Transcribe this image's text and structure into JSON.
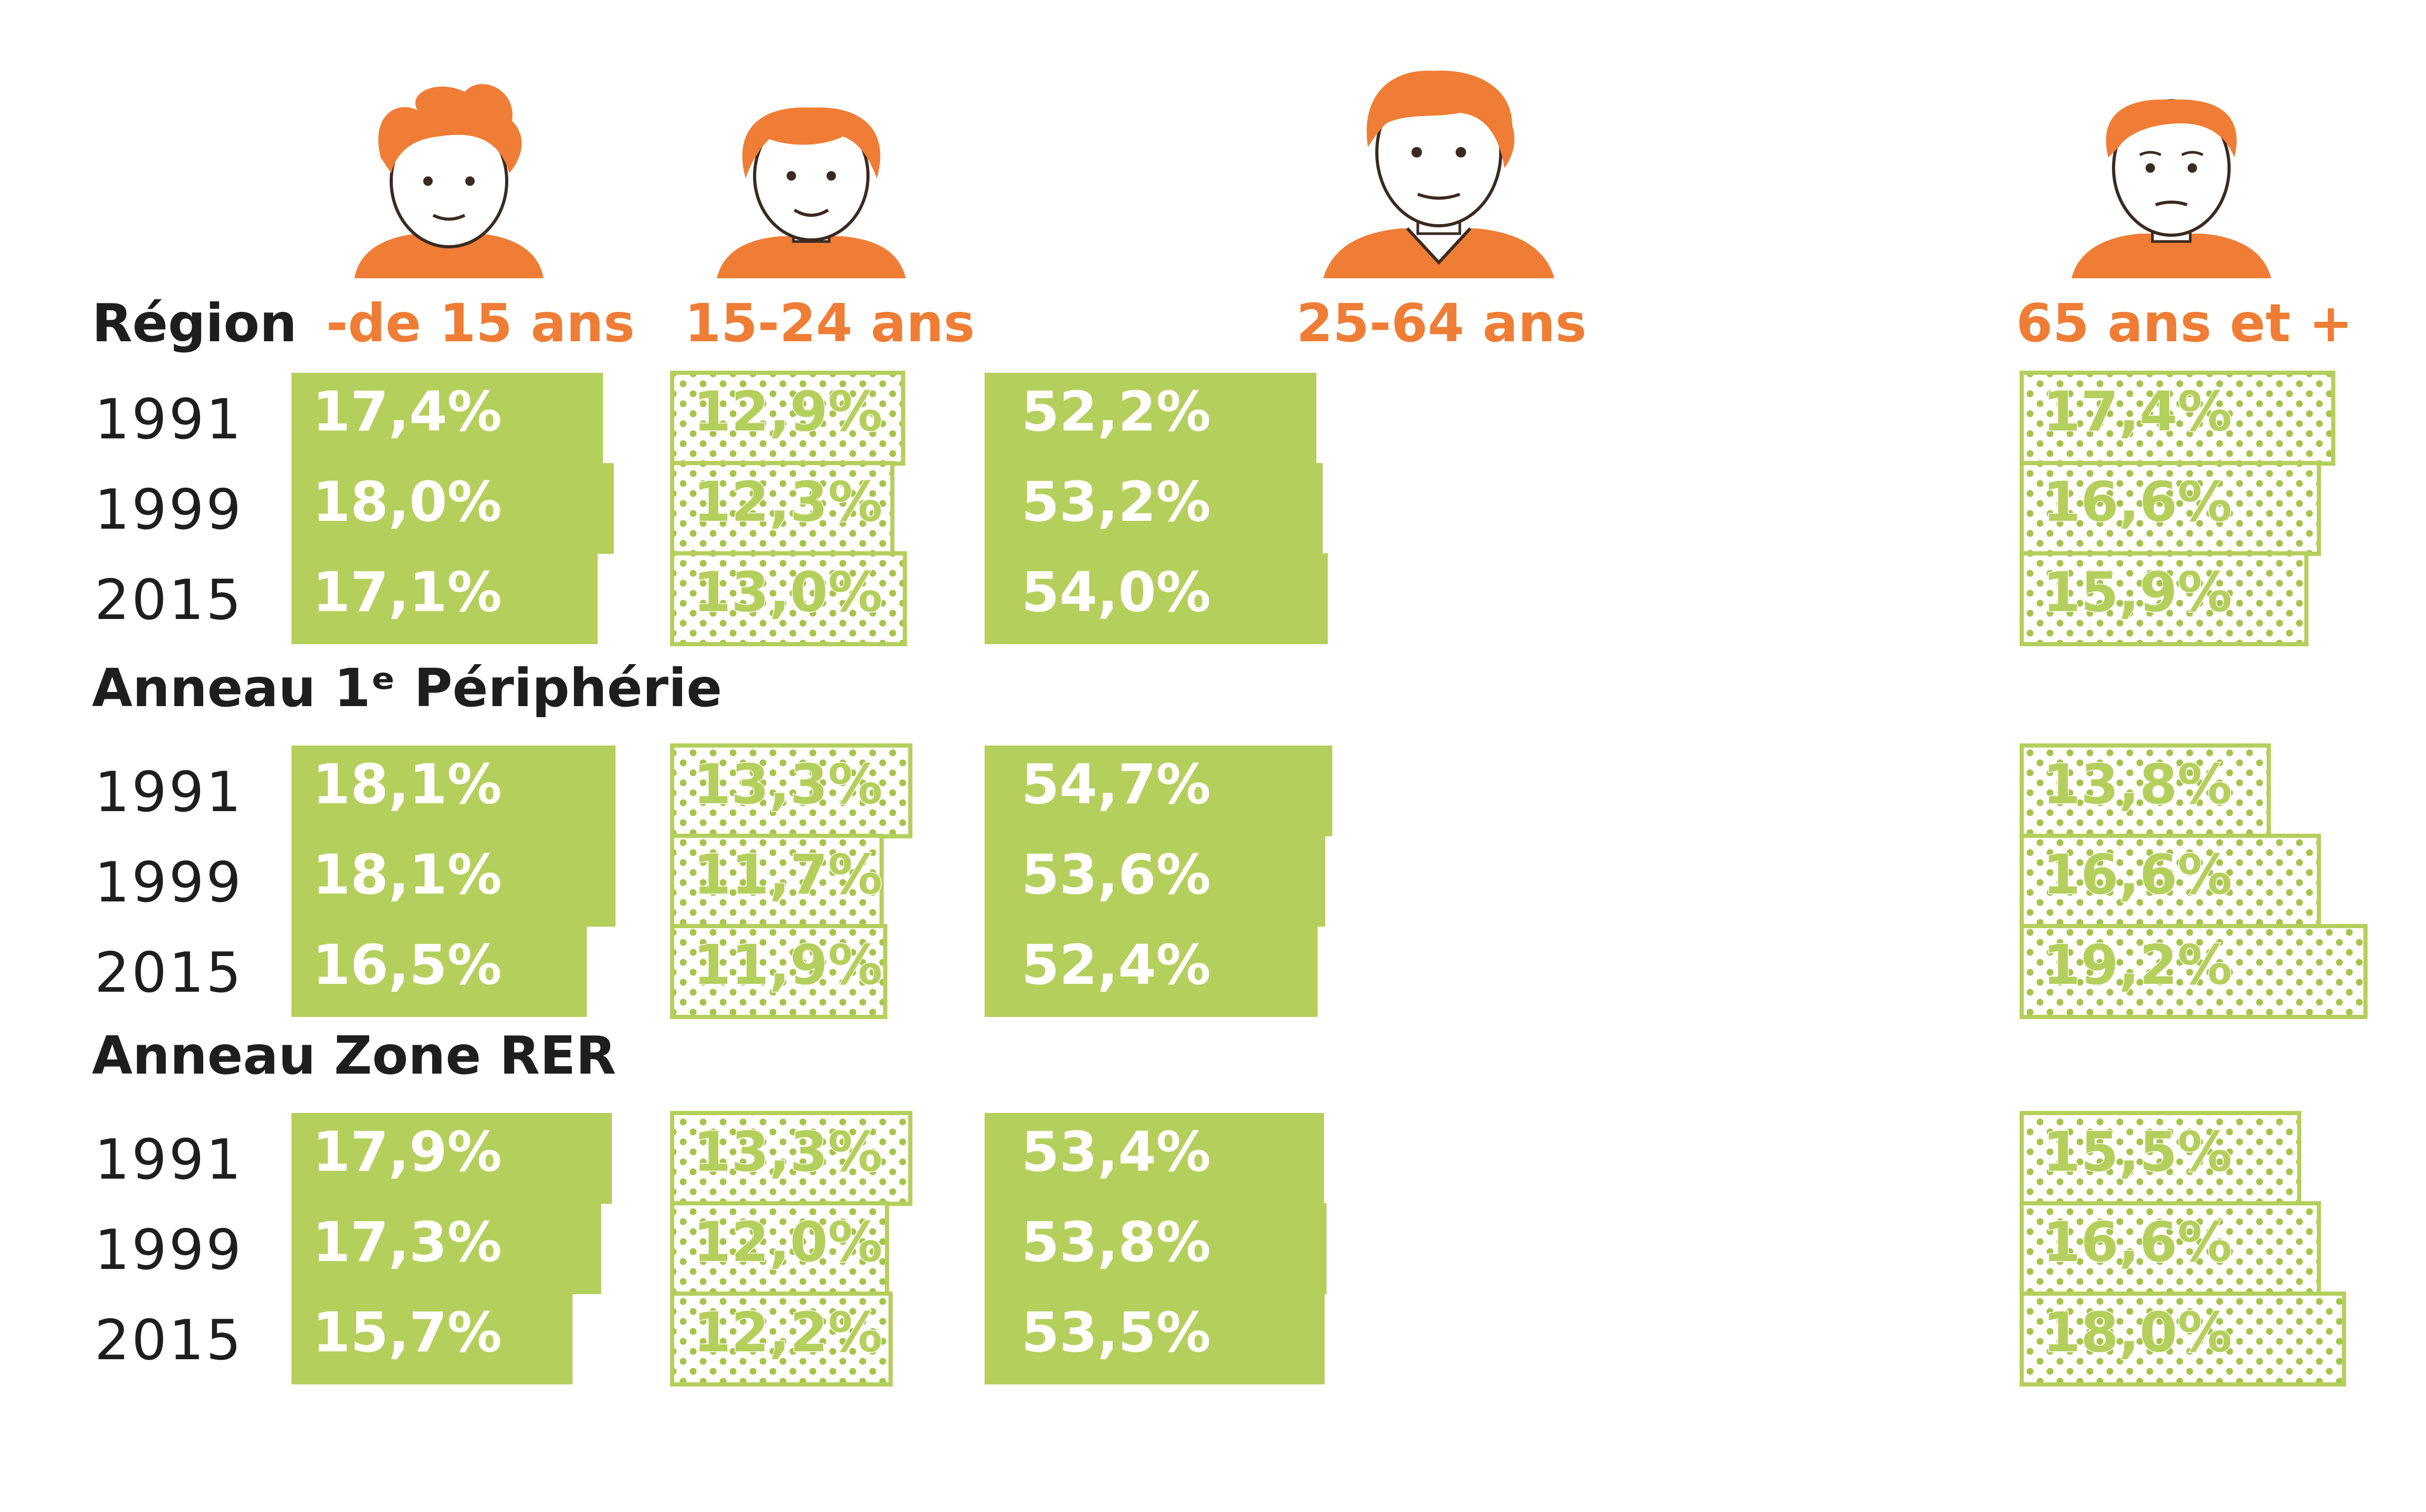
{
  "colors": {
    "bar_fill": "#b5cf5c",
    "dot_color": "#a6c449",
    "accent_orange": "#ef7d35",
    "text_dark": "#1e1e1e"
  },
  "icons": [
    "child-portrait-icon",
    "young-adult-portrait-icon",
    "adult-portrait-icon",
    "senior-portrait-icon"
  ],
  "chart_data": {
    "type": "bar",
    "orientation": "horizontal",
    "stacked": false,
    "categories": [
      "-de 15 ans",
      "15-24 ans",
      "25-64 ans",
      "65 ans et +"
    ],
    "years": [
      "1991",
      "1999",
      "2015"
    ],
    "unit": "%",
    "groups": [
      {
        "name": "Région",
        "rows": [
          {
            "year": "1991",
            "values": [
              17.4,
              12.9,
              52.2,
              17.4
            ],
            "labels": [
              "17,4%",
              "12,9%",
              "52,2%",
              "17,4%"
            ]
          },
          {
            "year": "1999",
            "values": [
              18.0,
              12.3,
              53.2,
              16.6
            ],
            "labels": [
              "18,0%",
              "12,3%",
              "53,2%",
              "16,6%"
            ]
          },
          {
            "year": "2015",
            "values": [
              17.1,
              13.0,
              54.0,
              15.9
            ],
            "labels": [
              "17,1%",
              "13,0%",
              "54,0%",
              "15,9%"
            ]
          }
        ]
      },
      {
        "name": "Anneau 1ᵉ Périphérie",
        "rows": [
          {
            "year": "1991",
            "values": [
              18.1,
              13.3,
              54.7,
              13.8
            ],
            "labels": [
              "18,1%",
              "13,3%",
              "54,7%",
              "13,8%"
            ]
          },
          {
            "year": "1999",
            "values": [
              18.1,
              11.7,
              53.6,
              16.6
            ],
            "labels": [
              "18,1%",
              "11,7%",
              "53,6%",
              "16,6%"
            ]
          },
          {
            "year": "2015",
            "values": [
              16.5,
              11.9,
              52.4,
              19.2
            ],
            "labels": [
              "16,5%",
              "11,9%",
              "52,4%",
              "19,2%"
            ]
          }
        ]
      },
      {
        "name": "Anneau Zone RER",
        "rows": [
          {
            "year": "1991",
            "values": [
              17.9,
              13.3,
              53.4,
              15.5
            ],
            "labels": [
              "17,9%",
              "13,3%",
              "53,4%",
              "15,5%"
            ]
          },
          {
            "year": "1999",
            "values": [
              17.3,
              12.0,
              53.8,
              16.6
            ],
            "labels": [
              "17,3%",
              "12,0%",
              "53,8%",
              "16,6%"
            ]
          },
          {
            "year": "2015",
            "values": [
              15.7,
              12.2,
              53.5,
              18.0
            ],
            "labels": [
              "15,7%",
              "12,2%",
              "53,5%",
              "18,0%"
            ]
          }
        ]
      }
    ],
    "legend": "none",
    "grid": false
  }
}
